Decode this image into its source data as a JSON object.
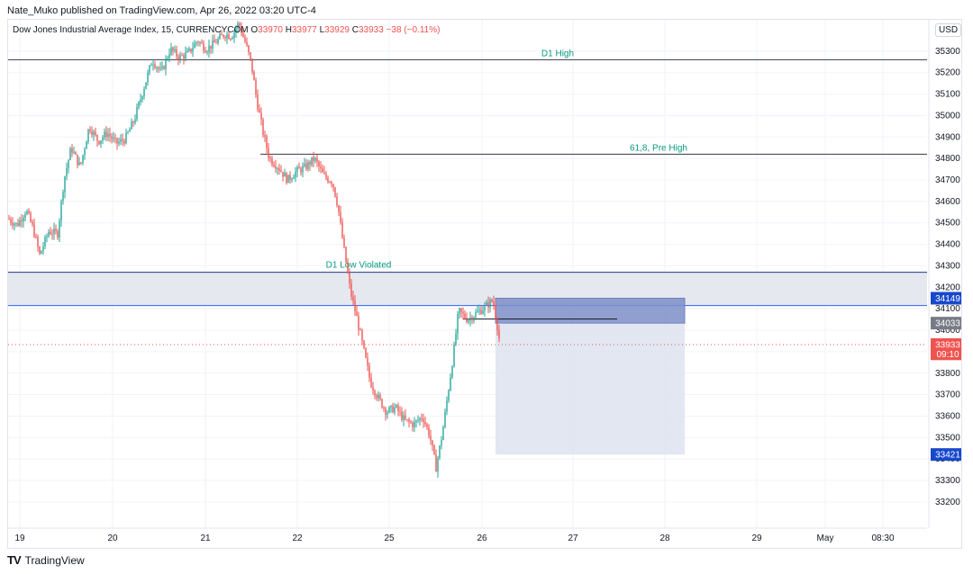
{
  "publisher": "Nate_Muko published on TradingView.com, Apr 26, 2022 03:20 UTC-4",
  "legend": {
    "symbol": "Dow Jones Industrial Average Index, 15, CURRENCYCOM",
    "o_label": "O",
    "o": "33970",
    "h_label": "H",
    "h": "33977",
    "l_label": "L",
    "l": "33929",
    "c_label": "C",
    "c": "33933",
    "change": "−38 (−0.11%)"
  },
  "currency_button": "USD",
  "footer_brand": "TradingView",
  "colors": {
    "up": "#26a69a",
    "down": "#ef5350",
    "zone": "#e6e8ef",
    "box": "#7d8fc8",
    "target": "#dfe4f1"
  },
  "chart_data": {
    "type": "candlestick",
    "y_ticks": [
      35300,
      35200,
      35100,
      35000,
      34900,
      34800,
      34700,
      34600,
      34500,
      34400,
      34300,
      34200,
      34100,
      34000,
      33900,
      33800,
      33700,
      33600,
      33500,
      33400,
      33300,
      33200
    ],
    "ylim": [
      33120,
      35400
    ],
    "x_ticks": [
      "19",
      "20",
      "21",
      "22",
      "25",
      "26",
      "27",
      "28",
      "29",
      "May",
      "08:30"
    ],
    "annotations": [
      {
        "label": "D1 High",
        "price": 35260
      },
      {
        "label": "61,8, Pre High",
        "price": 34820
      },
      {
        "label": "D1 Low Violated",
        "price": 34275
      }
    ],
    "price_labels": [
      {
        "text": "34149",
        "price": 34149
      },
      {
        "text": "34033",
        "price": 34033
      },
      {
        "text": "33933",
        "price": 33933
      },
      {
        "text": "09:10",
        "price": 33890
      },
      {
        "text": "33421",
        "price": 33421
      }
    ],
    "zone": {
      "top": 34270,
      "bottom": 34115
    },
    "position_box": {
      "entry": 34033,
      "stop": 34149,
      "target": 33421,
      "horizontal_level": 34052
    },
    "last_price": 33933,
    "path": [
      [
        0,
        34520
      ],
      [
        10,
        34490
      ],
      [
        20,
        34560
      ],
      [
        28,
        34470
      ],
      [
        35,
        34350
      ],
      [
        45,
        34460
      ],
      [
        55,
        34450
      ],
      [
        62,
        34700
      ],
      [
        70,
        34850
      ],
      [
        80,
        34760
      ],
      [
        90,
        34950
      ],
      [
        100,
        34880
      ],
      [
        110,
        34920
      ],
      [
        120,
        34870
      ],
      [
        130,
        34890
      ],
      [
        140,
        34980
      ],
      [
        150,
        35120
      ],
      [
        160,
        35260
      ],
      [
        170,
        35200
      ],
      [
        180,
        35310
      ],
      [
        190,
        35270
      ],
      [
        200,
        35290
      ],
      [
        210,
        35350
      ],
      [
        220,
        35310
      ],
      [
        230,
        35340
      ],
      [
        240,
        35380
      ],
      [
        248,
        35370
      ],
      [
        256,
        35430
      ],
      [
        264,
        35330
      ],
      [
        270,
        35240
      ],
      [
        276,
        35070
      ],
      [
        283,
        34920
      ],
      [
        290,
        34800
      ],
      [
        300,
        34760
      ],
      [
        310,
        34700
      ],
      [
        320,
        34740
      ],
      [
        330,
        34760
      ],
      [
        340,
        34800
      ],
      [
        350,
        34720
      ],
      [
        360,
        34690
      ],
      [
        366,
        34580
      ],
      [
        372,
        34400
      ],
      [
        380,
        34180
      ],
      [
        388,
        34040
      ],
      [
        395,
        33900
      ],
      [
        402,
        33760
      ],
      [
        410,
        33690
      ],
      [
        420,
        33620
      ],
      [
        430,
        33640
      ],
      [
        440,
        33580
      ],
      [
        450,
        33560
      ],
      [
        460,
        33600
      ],
      [
        468,
        33510
      ],
      [
        475,
        33360
      ],
      [
        482,
        33520
      ],
      [
        488,
        33700
      ],
      [
        494,
        33880
      ],
      [
        500,
        34090
      ],
      [
        510,
        34050
      ],
      [
        520,
        34080
      ],
      [
        530,
        34110
      ],
      [
        538,
        34140
      ],
      [
        543,
        34020
      ],
      [
        546,
        33933
      ]
    ]
  }
}
